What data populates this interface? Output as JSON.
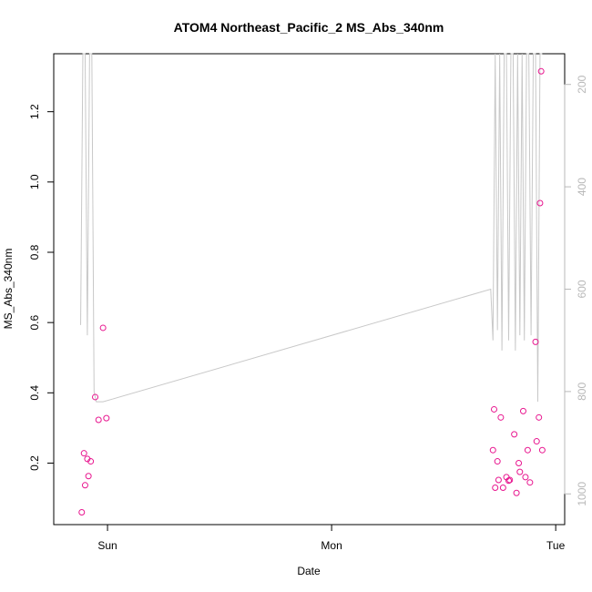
{
  "chart_data": {
    "type": "scatter",
    "title": "ATOM4 Northeast_Pacific_2 MS_Abs_340nm",
    "xlabel": "Date",
    "ylabel": "MS_Abs_340nm",
    "x_tick_labels": [
      "Sun",
      "Mon",
      "Tue"
    ],
    "x_tick_positions": [
      1,
      2,
      3
    ],
    "xlim": [
      0.76,
      3.04
    ],
    "ylim": [
      0.025,
      1.365
    ],
    "y_ticks": [
      0.2,
      0.4,
      0.6,
      0.8,
      1.0,
      1.2
    ],
    "y_tick_labels": [
      "0.2",
      "0.4",
      "0.6",
      "0.8",
      "1.0",
      "1.2"
    ],
    "y2_label": "",
    "y2_lim": [
      1060,
      140
    ],
    "y2_ticks": [
      200,
      400,
      600,
      800,
      1000
    ],
    "y2_tick_labels": [
      "200",
      "400",
      "600",
      "800",
      "1000"
    ],
    "grid": false,
    "colors": {
      "points": "#e8168f",
      "depth_line": "#c8c8c8",
      "secondary_axis": "#b8b8b8"
    },
    "series": [
      {
        "type": "scatter",
        "x": [
          0.885,
          0.895,
          0.9,
          0.91,
          0.915,
          0.925,
          0.945,
          0.96,
          0.98,
          0.995,
          2.72,
          2.725,
          2.73,
          2.74,
          2.745,
          2.755,
          2.765,
          2.78,
          2.79,
          2.795,
          2.815,
          2.825,
          2.835,
          2.84,
          2.855,
          2.865,
          2.875,
          2.885,
          2.91,
          2.915,
          2.925,
          2.93,
          2.935,
          2.94
        ],
        "y": [
          0.06,
          0.228,
          0.137,
          0.212,
          0.163,
          0.205,
          0.388,
          0.323,
          0.585,
          0.328,
          0.237,
          0.353,
          0.13,
          0.205,
          0.152,
          0.33,
          0.13,
          0.16,
          0.15,
          0.152,
          0.282,
          0.115,
          0.2,
          0.175,
          0.348,
          0.16,
          0.237,
          0.145,
          0.545,
          0.262,
          0.33,
          0.94,
          1.315,
          0.237
        ]
      },
      {
        "type": "line",
        "axis": "right",
        "x": [
          0.88,
          0.89,
          0.9,
          0.91,
          0.92,
          0.93,
          0.94,
          0.95,
          0.98,
          1.02,
          2.71,
          2.72,
          2.73,
          2.74,
          2.75,
          2.76,
          2.77,
          2.78,
          2.79,
          2.8,
          2.81,
          2.82,
          2.83,
          2.84,
          2.85,
          2.86,
          2.87,
          2.88,
          2.89,
          2.9,
          2.91,
          2.92,
          2.93,
          2.94
        ],
        "y": [
          670,
          60,
          60,
          690,
          60,
          60,
          800,
          820,
          820,
          815,
          600,
          700,
          60,
          680,
          60,
          720,
          60,
          70,
          700,
          60,
          60,
          720,
          60,
          690,
          60,
          700,
          60,
          60,
          690,
          60,
          60,
          820,
          60,
          60
        ]
      }
    ]
  }
}
